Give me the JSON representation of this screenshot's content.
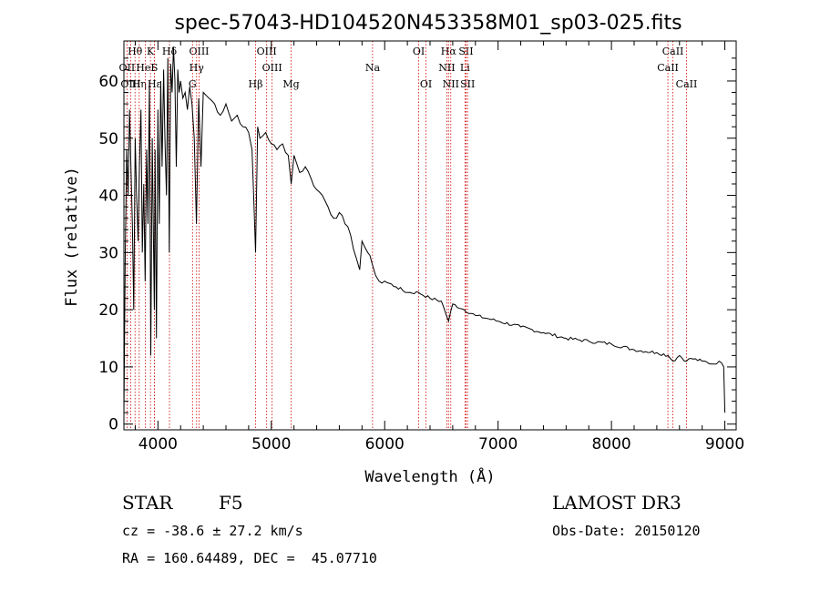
{
  "chart_data": {
    "type": "line",
    "title": "spec-57043-HD104520N453358M01_sp03-025.fits",
    "xlabel": "Wavelength (Å)",
    "ylabel": "Flux (relative)",
    "xlim": [
      3700,
      9100
    ],
    "ylim": [
      -1,
      67
    ],
    "xticks": [
      4000,
      5000,
      6000,
      7000,
      8000,
      9000
    ],
    "yticks": [
      0,
      10,
      20,
      30,
      40,
      50,
      60
    ],
    "series": [
      {
        "name": "flux",
        "x": [
          3700,
          3712,
          3725,
          3737,
          3750,
          3762,
          3775,
          3787,
          3800,
          3812,
          3825,
          3837,
          3850,
          3862,
          3875,
          3887,
          3900,
          3912,
          3925,
          3937,
          3950,
          3962,
          3968,
          3975,
          3987,
          4000,
          4012,
          4025,
          4037,
          4050,
          4062,
          4075,
          4087,
          4100,
          4112,
          4125,
          4137,
          4150,
          4162,
          4175,
          4187,
          4200,
          4220,
          4240,
          4260,
          4280,
          4300,
          4320,
          4340,
          4360,
          4380,
          4400,
          4450,
          4500,
          4550,
          4600,
          4650,
          4700,
          4750,
          4800,
          4830,
          4861,
          4880,
          4900,
          4950,
          5000,
          5050,
          5100,
          5150,
          5175,
          5200,
          5250,
          5300,
          5350,
          5400,
          5450,
          5500,
          5550,
          5600,
          5650,
          5700,
          5750,
          5780,
          5800,
          5850,
          5890,
          5920,
          5950,
          6000,
          6100,
          6200,
          6300,
          6400,
          6500,
          6563,
          6600,
          6700,
          6800,
          6900,
          7000,
          7200,
          7400,
          7600,
          7800,
          8000,
          8200,
          8400,
          8500,
          8542,
          8600,
          8662,
          8700,
          8800,
          8900,
          8950,
          8990,
          9000
        ],
        "values": [
          2,
          30,
          48,
          40,
          55,
          45,
          35,
          20,
          50,
          40,
          32,
          45,
          55,
          30,
          42,
          25,
          48,
          35,
          60,
          12,
          50,
          30,
          20,
          48,
          15,
          55,
          35,
          60,
          45,
          62,
          50,
          40,
          64,
          30,
          63,
          58,
          66,
          60,
          45,
          62,
          58,
          60,
          57,
          58,
          55,
          59,
          56,
          50,
          35,
          57,
          45,
          58,
          57,
          56,
          54,
          56,
          53,
          54,
          52,
          51,
          48,
          30,
          52,
          50,
          51,
          49,
          48,
          49,
          47,
          42,
          47,
          44,
          45,
          43,
          41,
          40,
          38,
          36,
          37,
          35,
          33,
          29,
          27,
          32,
          30,
          28,
          26,
          25,
          25,
          24,
          23,
          23,
          22,
          21.5,
          18,
          21,
          20,
          19,
          18.5,
          18,
          17,
          16,
          15,
          14.5,
          14,
          13,
          12.5,
          12,
          11,
          12,
          11,
          11.5,
          11,
          10.5,
          11,
          10,
          2
        ]
      }
    ],
    "lines": [
      {
        "name": "Hθ",
        "wave": 3798,
        "row": 1
      },
      {
        "name": "OII",
        "wave": 3727,
        "row": 2
      },
      {
        "name": "OIII",
        "wave": 3760,
        "row": 3
      },
      {
        "name": "Hη",
        "wave": 3835,
        "row": 3
      },
      {
        "name": "K",
        "wave": 3934,
        "row": 1
      },
      {
        "name": "HeI",
        "wave": 3889,
        "row": 2
      },
      {
        "name": "S",
        "wave": 3970,
        "row": 2
      },
      {
        "name": "Hε",
        "wave": 3970,
        "row": 3
      },
      {
        "name": "Hδ",
        "wave": 4102,
        "row": 1
      },
      {
        "name": "OIII",
        "wave": 4363,
        "row": 1
      },
      {
        "name": "Hγ",
        "wave": 4341,
        "row": 2
      },
      {
        "name": "G",
        "wave": 4305,
        "row": 3
      },
      {
        "name": "Hβ",
        "wave": 4861,
        "row": 3
      },
      {
        "name": "OIII",
        "wave": 4959,
        "row": 1
      },
      {
        "name": "OIII",
        "wave": 5007,
        "row": 2
      },
      {
        "name": "Mg",
        "wave": 5175,
        "row": 3
      },
      {
        "name": "Na",
        "wave": 5893,
        "row": 2
      },
      {
        "name": "OI",
        "wave": 6300,
        "row": 1
      },
      {
        "name": "OI",
        "wave": 6364,
        "row": 3
      },
      {
        "name": "Hα",
        "wave": 6563,
        "row": 1
      },
      {
        "name": "NII",
        "wave": 6548,
        "row": 2
      },
      {
        "name": "NII",
        "wave": 6583,
        "row": 3
      },
      {
        "name": "SII",
        "wave": 6717,
        "row": 1
      },
      {
        "name": "Li",
        "wave": 6708,
        "row": 2
      },
      {
        "name": "SII",
        "wave": 6731,
        "row": 3
      },
      {
        "name": "CaII",
        "wave": 8542,
        "row": 1
      },
      {
        "name": "CaII",
        "wave": 8498,
        "row": 2
      },
      {
        "name": "CaII",
        "wave": 8662,
        "row": 3
      }
    ]
  },
  "info": {
    "class": "STAR",
    "subclass": "F5",
    "survey": "LAMOST DR3",
    "cz": "cz = -38.6 ± 27.2 km/s",
    "obs_date": "Obs-Date: 20150120",
    "coords": "RA = 160.64489, DEC =  45.07710"
  },
  "colors": {
    "line_marker": "#cc0000",
    "spectrum": "#000000"
  }
}
